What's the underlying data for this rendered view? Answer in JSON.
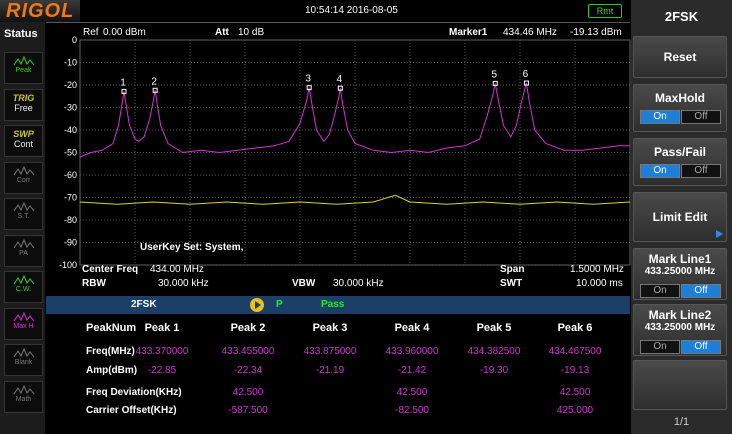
{
  "header": {
    "logo": "RIGOL",
    "datetime": "10:54:14 2016-08-05",
    "remote": "Rmt"
  },
  "status": {
    "title": "Status",
    "items": [
      [
        "Peak"
      ],
      [
        "TRIG",
        "Free"
      ],
      [
        "SWP",
        "Cont"
      ],
      [
        "Corr"
      ],
      [
        "S.T."
      ],
      [
        "PA"
      ],
      [
        "C.W."
      ],
      [
        "Max H"
      ],
      [
        "Blank"
      ],
      [
        "Math"
      ]
    ]
  },
  "screen": {
    "ref_label": "Ref",
    "ref_value": "0.00 dBm",
    "att_label": "Att",
    "att_value": "10 dB",
    "marker_label": "Marker1",
    "marker_freq": "434.46 MHz",
    "marker_amp": "-19.13 dBm",
    "user_key": "UserKey Set:  System,"
  },
  "settings": {
    "center_label": "Center Freq",
    "center_value": "434.00 MHz",
    "span_label": "Span",
    "span_value": "1.5000 MHz",
    "rbw_label": "RBW",
    "rbw_value": "30.000 kHz",
    "vbw_label": "VBW",
    "vbw_value": "30.000 kHz",
    "swt_label": "SWT",
    "swt_value": "10.000 ms"
  },
  "chart_data": {
    "type": "line",
    "xlim": [
      433.25,
      434.75
    ],
    "ylim": [
      -100,
      0
    ],
    "yticks": [
      0,
      -10,
      -20,
      -30,
      -40,
      -50,
      -60,
      -70,
      -80,
      -90,
      -100
    ],
    "grid": true,
    "marker_labels": [
      "1",
      "2",
      "3",
      "4",
      "5",
      "6"
    ],
    "series": [
      {
        "color": "#d233d2",
        "x": [
          433.25,
          433.28,
          433.31,
          433.34,
          433.355,
          433.365,
          433.37,
          433.375,
          433.385,
          433.4,
          433.41,
          433.425,
          433.44,
          433.45,
          433.455,
          433.46,
          433.47,
          433.49,
          433.53,
          433.58,
          433.63,
          433.68,
          433.73,
          433.78,
          433.82,
          433.85,
          433.868,
          433.875,
          433.882,
          433.895,
          433.915,
          433.93,
          433.945,
          433.955,
          433.96,
          433.966,
          433.98,
          434.0,
          434.05,
          434.1,
          434.15,
          434.2,
          434.25,
          434.3,
          434.34,
          434.36,
          434.375,
          434.3825,
          434.39,
          434.405,
          434.425,
          434.44,
          434.455,
          434.4675,
          434.475,
          434.49,
          434.52,
          434.57,
          434.62,
          434.67,
          434.72,
          434.75
        ],
        "values": [
          -52,
          -50,
          -49,
          -46,
          -38,
          -28,
          -22.85,
          -28,
          -38,
          -44,
          -45,
          -43,
          -35,
          -27,
          -22.34,
          -28,
          -38,
          -46,
          -50,
          -49,
          -50,
          -49,
          -48,
          -47,
          -45,
          -37,
          -27,
          -21.19,
          -28,
          -40,
          -45,
          -42,
          -33,
          -26,
          -21.42,
          -28,
          -40,
          -46,
          -49,
          -50,
          -49,
          -50,
          -48,
          -47,
          -44,
          -34,
          -25,
          -19.3,
          -26,
          -38,
          -43,
          -38,
          -27,
          -19.13,
          -27,
          -40,
          -46,
          -49,
          -49,
          -48,
          -47,
          -47
        ]
      },
      {
        "color": "#d8d822",
        "x": [
          433.25,
          433.35,
          433.45,
          433.55,
          433.65,
          433.75,
          433.85,
          433.95,
          434.05,
          434.11,
          434.15,
          434.25,
          434.35,
          434.45,
          434.55,
          434.65,
          434.75
        ],
        "values": [
          -72,
          -73,
          -72,
          -73,
          -72,
          -73,
          -72,
          -73,
          -72,
          -69,
          -72,
          -73,
          -72,
          -73,
          -72,
          -73,
          -72
        ]
      }
    ]
  },
  "measure_bar": {
    "mode": "2FSK",
    "state": "P",
    "result": "Pass"
  },
  "table": {
    "header": [
      "PeakNum",
      "Peak 1",
      "Peak 2",
      "Peak 3",
      "Peak 4",
      "Peak 5",
      "Peak 6"
    ],
    "rows": [
      [
        "Freq(MHz)",
        "433.370000",
        "433.455000",
        "433.875000",
        "433.960000",
        "434.382500",
        "434.467500"
      ],
      [
        "Amp(dBm)",
        "-22.85",
        "-22.34",
        "-21.19",
        "-21.42",
        "-19.30",
        "-19.13"
      ],
      [
        "Freq Deviation(KHz)",
        null,
        "42.500",
        null,
        "42.500",
        null,
        "42.500"
      ],
      [
        "Carrier Offset(KHz)",
        null,
        "-587.500",
        null,
        "-82.500",
        null,
        "425.000"
      ]
    ]
  },
  "menu": {
    "title": "2FSK",
    "reset": "Reset",
    "maxhold": {
      "label": "MaxHold",
      "on": "On",
      "off": "Off"
    },
    "passfail": {
      "label": "Pass/Fail",
      "on": "On",
      "off": "Off"
    },
    "limit_edit": "Limit Edit",
    "markline1": {
      "label": "Mark Line1",
      "value": "433.25000 MHz",
      "on": "On",
      "off": "Off"
    },
    "markline2": {
      "label": "Mark Line2",
      "value": "433.25000 MHz",
      "on": "On",
      "off": "Off"
    },
    "page": "1/1"
  }
}
